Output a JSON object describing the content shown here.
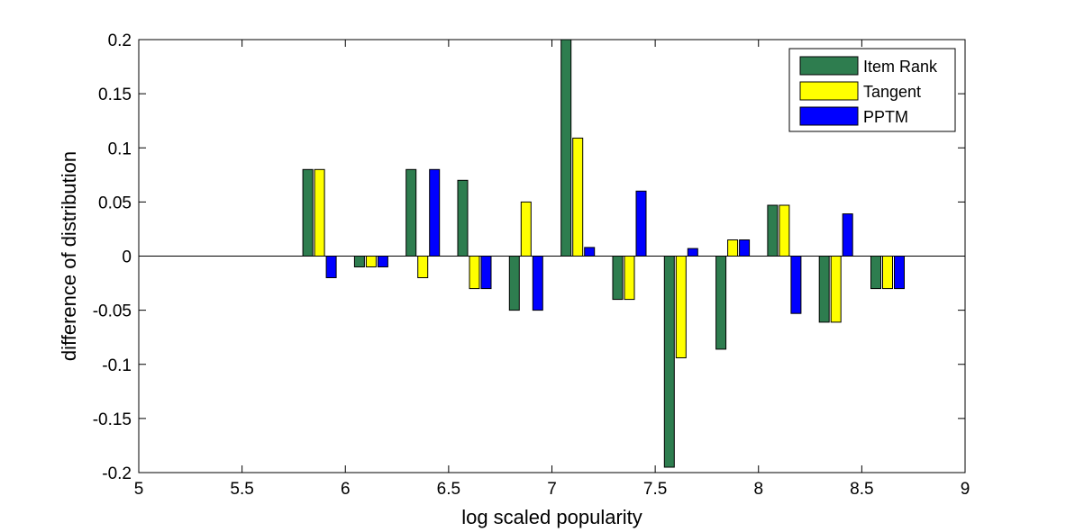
{
  "chart_data": {
    "type": "bar",
    "title": "",
    "xlabel": "log scaled popularity",
    "ylabel": "difference of distribution",
    "xlim": [
      5,
      9
    ],
    "ylim": [
      -0.2,
      0.2
    ],
    "xticks": [
      "5",
      "5.5",
      "6",
      "6.5",
      "7",
      "7.5",
      "8",
      "8.5",
      "9"
    ],
    "yticks": [
      "-0.2",
      "-0.15",
      "-0.1",
      "-0.05",
      "0",
      "0.05",
      "0.1",
      "0.15",
      "0.2"
    ],
    "x": [
      5.875,
      6.125,
      6.375,
      6.625,
      6.875,
      7.125,
      7.375,
      7.625,
      7.875,
      8.125,
      8.375,
      8.625
    ],
    "series": [
      {
        "name": "Item Rank",
        "color": "#2e7d4f",
        "values": [
          0.08,
          -0.01,
          0.08,
          0.07,
          -0.05,
          0.2,
          -0.04,
          -0.195,
          -0.086,
          0.047,
          -0.061,
          -0.03
        ]
      },
      {
        "name": "Tangent",
        "color": "#ffff00",
        "values": [
          0.08,
          -0.01,
          -0.02,
          -0.03,
          0.05,
          0.109,
          -0.04,
          -0.094,
          0.015,
          0.047,
          -0.061,
          -0.03
        ]
      },
      {
        "name": "PPTM",
        "color": "#0000ff",
        "values": [
          -0.02,
          -0.01,
          0.08,
          -0.03,
          -0.05,
          0.008,
          0.06,
          0.007,
          0.015,
          -0.053,
          0.039,
          -0.03
        ]
      }
    ],
    "legend_position": "top-right",
    "grid": false
  }
}
